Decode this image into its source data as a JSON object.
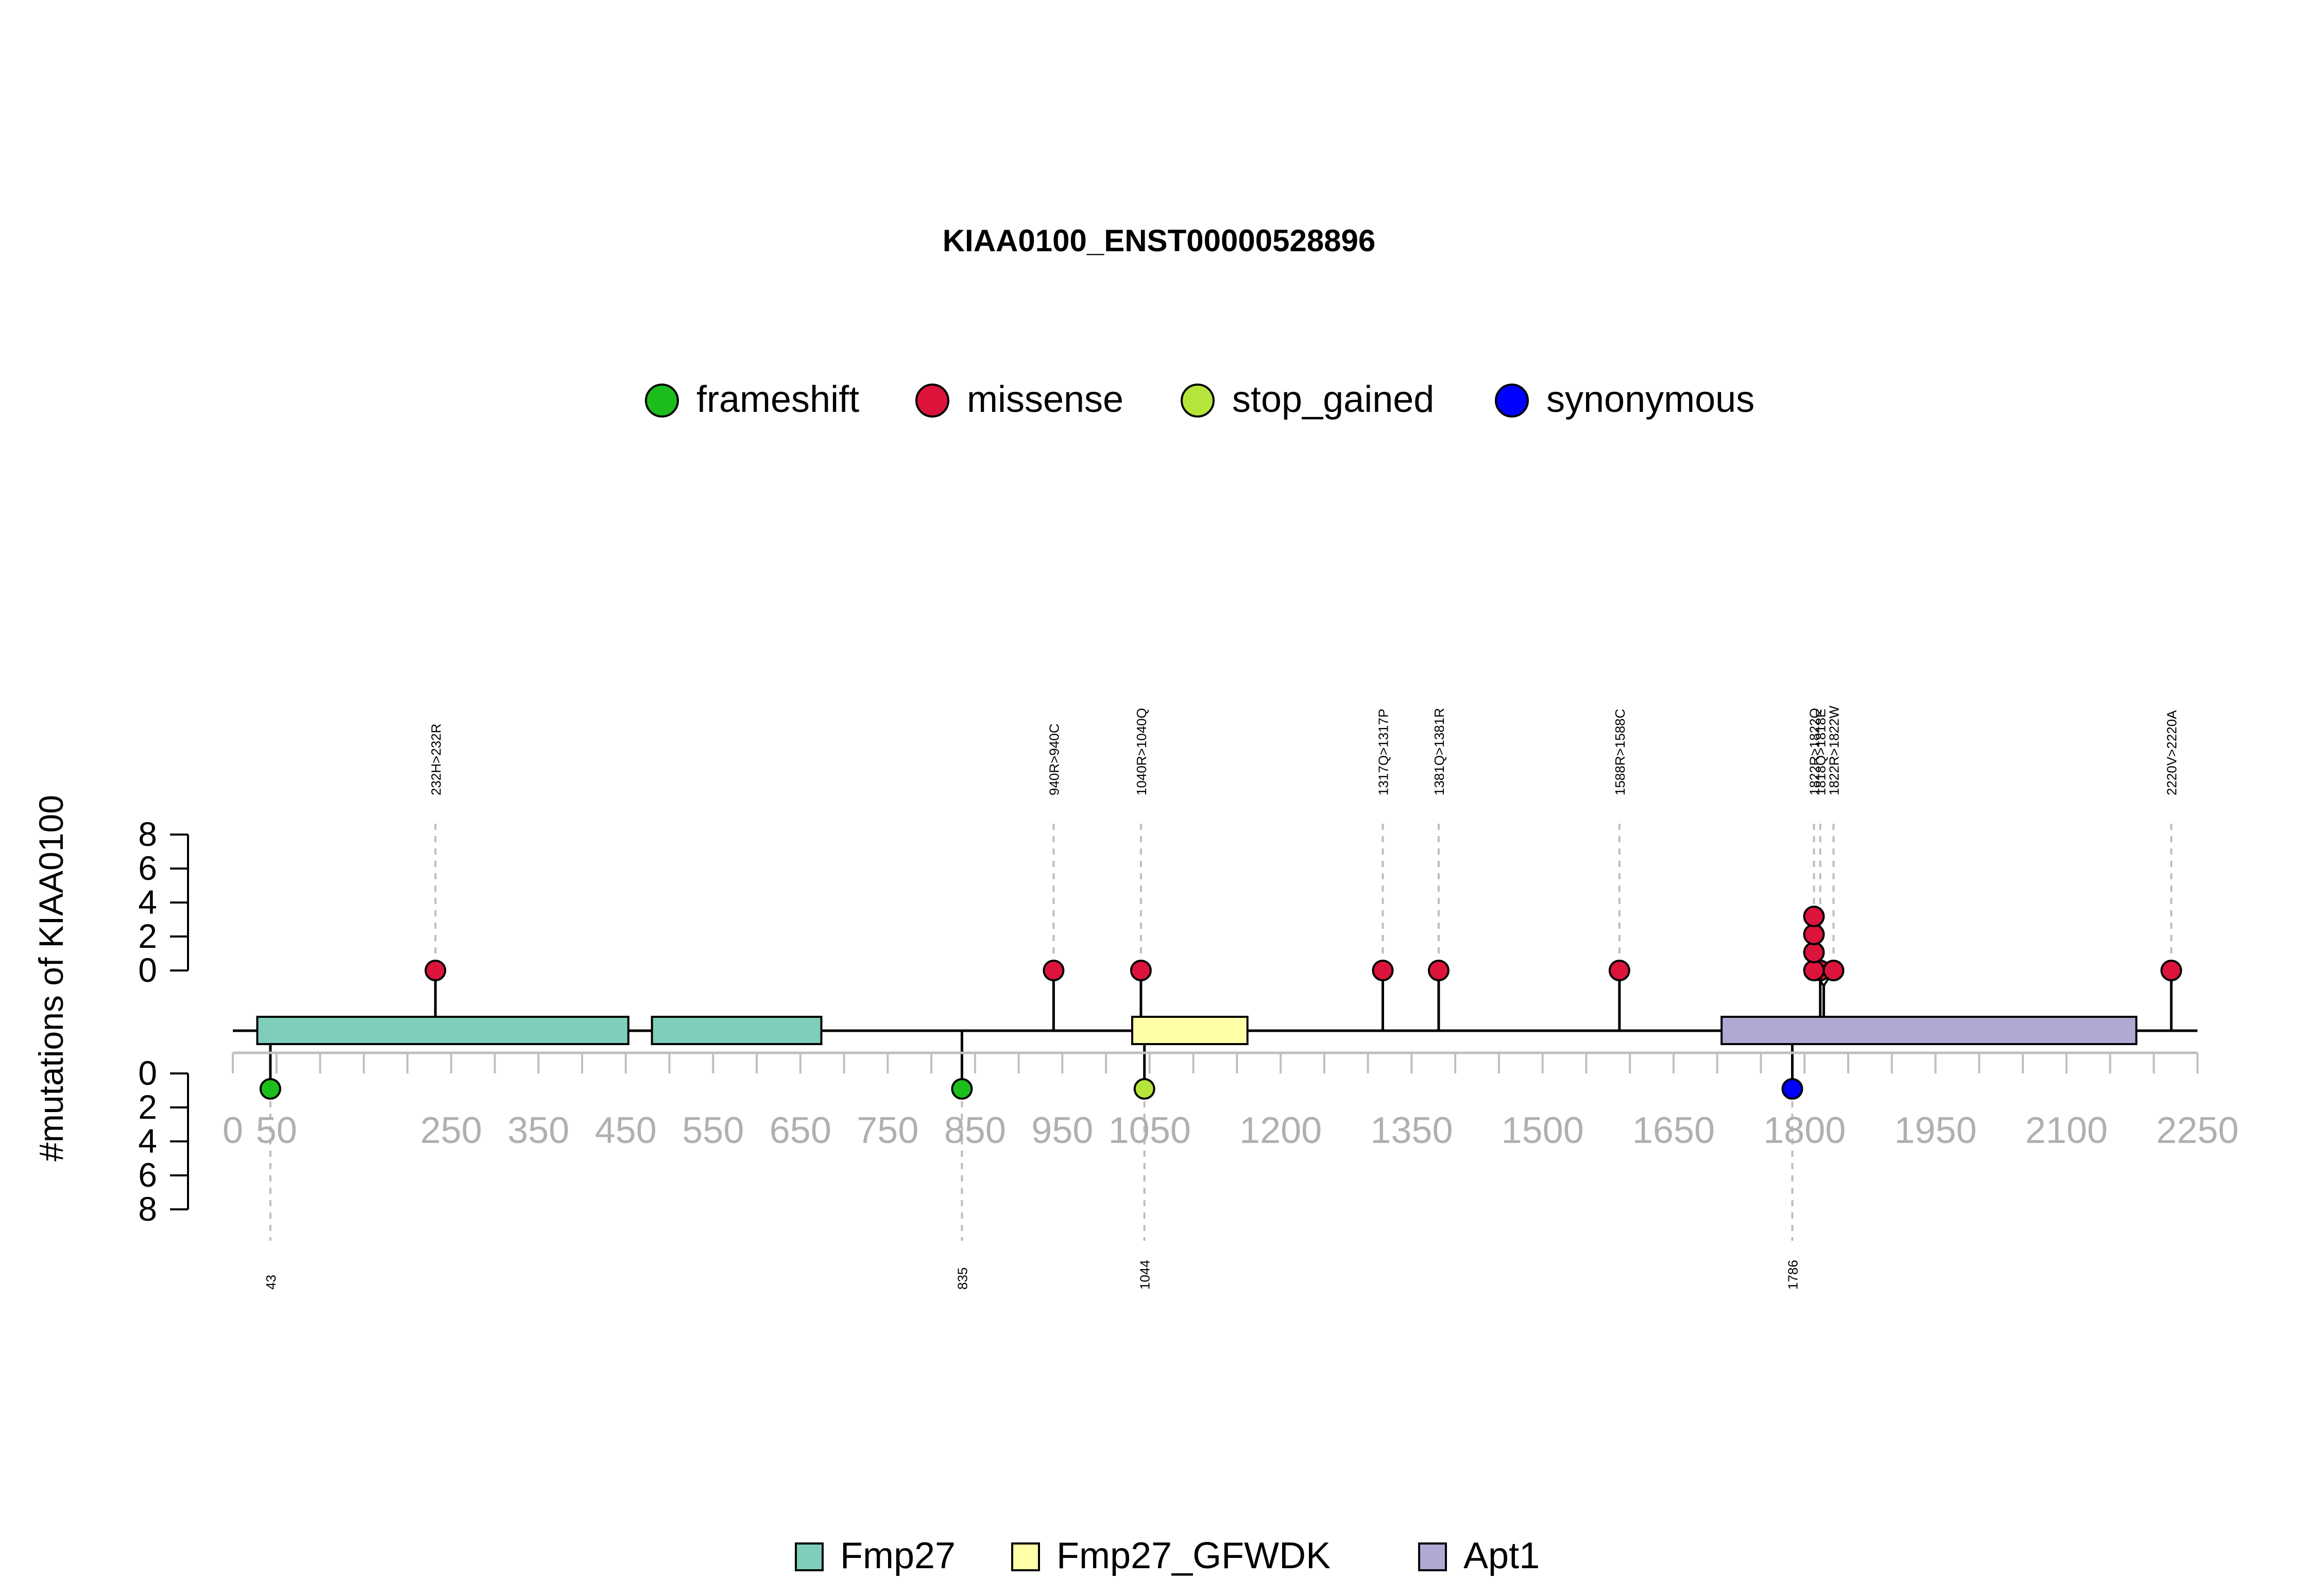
{
  "chart_data": {
    "type": "lollipop",
    "title": "KIAA0100_ENST00000528896",
    "ylabel": "#mutations of KIAA0100",
    "xlim": [
      0,
      2250
    ],
    "x_ticks": [
      0,
      50,
      250,
      350,
      450,
      550,
      650,
      750,
      850,
      950,
      1050,
      1200,
      1350,
      1500,
      1650,
      1800,
      1950,
      2100,
      2250
    ],
    "y_ticks_top": [
      0,
      2,
      4,
      6,
      8
    ],
    "y_ticks_bottom": [
      0,
      2,
      4,
      6,
      8
    ],
    "mutation_legend": [
      {
        "label": "frameshift",
        "color": "#1cbe1c"
      },
      {
        "label": "missense",
        "color": "#dc143c"
      },
      {
        "label": "stop_gained",
        "color": "#b5e53a"
      },
      {
        "label": "synonymous",
        "color": "#0000ff"
      }
    ],
    "domain_legend": [
      {
        "label": "Fmp27",
        "color": "#7fcdbb"
      },
      {
        "label": "Fmp27_GFWDK",
        "color": "#ffffa8"
      },
      {
        "label": "Apt1",
        "color": "#b0a9d4"
      }
    ],
    "domains": [
      {
        "name": "Fmp27",
        "start": 28,
        "end": 453,
        "color": "#7fcdbb"
      },
      {
        "name": "Fmp27",
        "start": 480,
        "end": 674,
        "color": "#7fcdbb"
      },
      {
        "name": "Fmp27_GFWDK",
        "start": 1030,
        "end": 1162,
        "color": "#ffffa8"
      },
      {
        "name": "Apt1",
        "start": 1705,
        "end": 2180,
        "color": "#b0a9d4"
      }
    ],
    "top_mutations": [
      {
        "label": "232H>232R",
        "position": 232,
        "count": 1,
        "type": "missense"
      },
      {
        "label": "940R>940C",
        "position": 940,
        "count": 1,
        "type": "missense"
      },
      {
        "label": "1040R>1040Q",
        "position": 1040,
        "count": 1,
        "type": "missense"
      },
      {
        "label": "1317Q>1317P",
        "position": 1317,
        "count": 1,
        "type": "missense"
      },
      {
        "label": "1381Q>1381R",
        "position": 1381,
        "count": 1,
        "type": "missense"
      },
      {
        "label": "1588R>1588C",
        "position": 1588,
        "count": 1,
        "type": "missense"
      },
      {
        "label": "1818Q>1818E",
        "position": 1818,
        "count": 1,
        "type": "missense"
      },
      {
        "label": "1822R>1822Q",
        "position": 1822,
        "count": 4,
        "type": "missense"
      },
      {
        "label": "1822R>1822W",
        "position": 1822,
        "count": 1,
        "type": "missense"
      },
      {
        "label": "2220V>2220A",
        "position": 2220,
        "count": 1,
        "type": "missense"
      }
    ],
    "bottom_mutations": [
      {
        "label": "43",
        "position": 43,
        "count": 1,
        "type": "frameshift"
      },
      {
        "label": "835",
        "position": 835,
        "count": 1,
        "type": "frameshift"
      },
      {
        "label": "1044",
        "position": 1044,
        "count": 1,
        "type": "stop_gained"
      },
      {
        "label": "1786",
        "position": 1786,
        "count": 1,
        "type": "synonymous"
      }
    ]
  }
}
